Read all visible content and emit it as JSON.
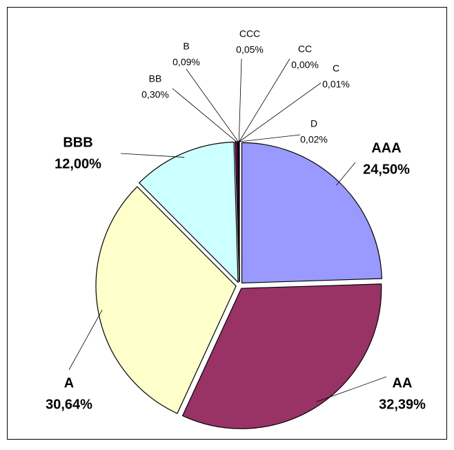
{
  "chart_data": {
    "type": "pie",
    "categories": [
      "AAA",
      "AA",
      "A",
      "BBB",
      "BB",
      "B",
      "CCC",
      "CC",
      "C",
      "D"
    ],
    "values": [
      24.5,
      32.39,
      30.64,
      12.0,
      0.3,
      0.09,
      0.05,
      0.0,
      0.01,
      0.02
    ],
    "value_labels": [
      "24,50%",
      "32,39%",
      "30,64%",
      "12,00%",
      "0,30%",
      "0,09%",
      "0,05%",
      "0,00%",
      "0,01%",
      "0,02%"
    ],
    "colors": [
      "#9999ff",
      "#993366",
      "#ffffcc",
      "#ccffff",
      "#660066",
      "#ff8080",
      "#0066cc",
      "#ccccff",
      "#000080",
      "#ff00ff"
    ]
  }
}
